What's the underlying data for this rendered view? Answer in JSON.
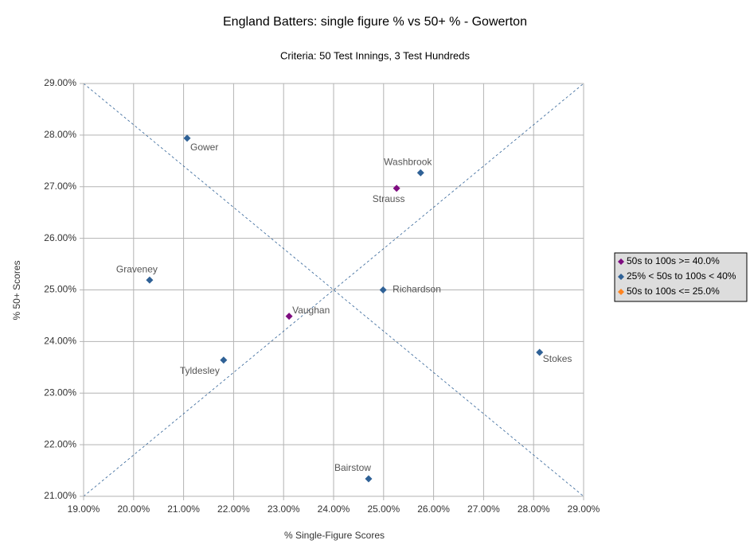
{
  "chart_data": {
    "type": "scatter",
    "title": "England Batters: single figure % vs 50+ % - Gowerton",
    "subtitle": "Criteria: 50 Test Innings, 3 Test Hundreds",
    "x_label": "% Single-Figure Scores",
    "y_label": "% 50+ Scores",
    "xlim": [
      19,
      29
    ],
    "ylim": [
      21,
      29
    ],
    "xticks": [
      {
        "value": 19,
        "label": "19.00%"
      },
      {
        "value": 20,
        "label": "20.00%"
      },
      {
        "value": 21,
        "label": "21.00%"
      },
      {
        "value": 22,
        "label": "22.00%"
      },
      {
        "value": 23,
        "label": "23.00%"
      },
      {
        "value": 24,
        "label": "24.00%"
      },
      {
        "value": 25,
        "label": "25.00%"
      },
      {
        "value": 26,
        "label": "26.00%"
      },
      {
        "value": 27,
        "label": "27.00%"
      },
      {
        "value": 28,
        "label": "28.00%"
      },
      {
        "value": 29,
        "label": "29.00%"
      }
    ],
    "yticks": [
      {
        "value": 21,
        "label": "21.00%"
      },
      {
        "value": 22,
        "label": "22.00%"
      },
      {
        "value": 23,
        "label": "23.00%"
      },
      {
        "value": 24,
        "label": "24.00%"
      },
      {
        "value": 25,
        "label": "25.00%"
      },
      {
        "value": 26,
        "label": "26.00%"
      },
      {
        "value": 27,
        "label": "27.00%"
      },
      {
        "value": 28,
        "label": "28.00%"
      },
      {
        "value": 29,
        "label": "29.00%"
      }
    ],
    "grid": true,
    "legend": "right",
    "series": [
      {
        "name": "50s to 100s >= 40.0%",
        "color": "#7e0c80",
        "x": [
          25.26,
          23.11
        ],
        "values": [
          26.97,
          24.49
        ],
        "labels": [
          "Strauss",
          "Vaughan"
        ]
      },
      {
        "name": "25% < 50s to 100s < 40%",
        "color": "#2f6196",
        "x": [
          21.07,
          25.74,
          20.32,
          24.99,
          28.12,
          21.8,
          24.7
        ],
        "values": [
          27.94,
          27.27,
          25.19,
          25.0,
          23.79,
          23.64,
          21.34
        ],
        "labels": [
          "Gower",
          "Washbrook",
          "Graveney",
          "Richardson",
          "Stokes",
          "Tyldesley",
          "Bairstow"
        ]
      },
      {
        "name": "50s to 100s <= 25.0%",
        "color": "#ff8420",
        "x": [],
        "values": [],
        "labels": []
      }
    ]
  }
}
